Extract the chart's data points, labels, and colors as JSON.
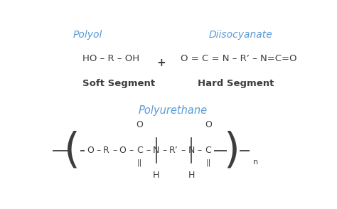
{
  "bg_color": "#ffffff",
  "blue_color": "#5b9bd5",
  "text_color": "#3d3d3d",
  "title_polyol": "Polyol",
  "title_diisocyanate": "Diisocyanate",
  "title_polyurethane": "Polyurethane",
  "label_soft": "Soft Segment",
  "label_hard": "Hard Segment"
}
